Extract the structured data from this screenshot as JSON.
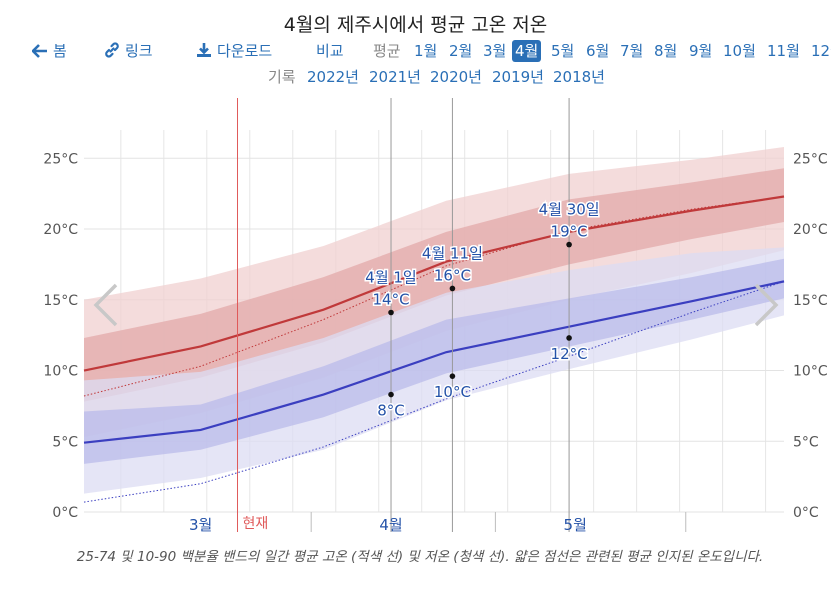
{
  "title": "4월의 제주시에서 평균 고온 저온",
  "nav": {
    "home_label": "봄",
    "link_label": "링크",
    "download_label": "다운로드",
    "compare_label": "비교",
    "average_label": "평균",
    "months": [
      "1월",
      "2월",
      "3월",
      "4월",
      "5월",
      "6월",
      "7월",
      "8월",
      "9월",
      "10월",
      "11월",
      "12월"
    ],
    "active_month": "4월"
  },
  "records": {
    "label": "기록",
    "years": [
      "2022년",
      "2021년",
      "2020년",
      "2019년",
      "2018년"
    ]
  },
  "caption": "25-74 및 10-90 백분율 밴드의 일간 평균 고온 (적색 선) 및 저온 (청색 선). 얇은 점선은 관련된 평균 인지된 온도입니다.",
  "colors": {
    "high_line": "#c0393a",
    "low_line": "#3b3fc0",
    "high_band_outer": "#f0d0d0",
    "high_band_inner": "#e3a9a9",
    "low_band_outer": "#dcdcf3",
    "low_band_inner": "#b9bbe9",
    "now_line": "#e05a5a",
    "link": "#2a6fb6"
  },
  "chart_data": {
    "type": "line",
    "x_unit": "day-of-year",
    "xlim": [
      41,
      155
    ],
    "ylim": [
      0,
      27
    ],
    "yticks": [
      0,
      5,
      10,
      15,
      20,
      25
    ],
    "ytick_labels": [
      "0°C",
      "5°C",
      "10°C",
      "15°C",
      "20°C",
      "25°C"
    ],
    "month_labels": [
      {
        "label": "3월",
        "x": 60
      },
      {
        "label": "4월",
        "x": 91
      },
      {
        "label": "5월",
        "x": 121
      }
    ],
    "month_boundaries": [
      78,
      108,
      139
    ],
    "now_marker": {
      "label": "현재",
      "x": 66
    },
    "series": [
      {
        "name": "평균 고온",
        "x": [
          41,
          60,
          80,
          100,
          120,
          140,
          155
        ],
        "values": [
          10.0,
          11.7,
          14.3,
          17.7,
          19.8,
          21.3,
          22.3
        ],
        "p10": [
          5.3,
          7.0,
          9.5,
          12.8,
          15.0,
          16.9,
          18.5
        ],
        "p25": [
          7.8,
          9.5,
          12.0,
          15.3,
          17.5,
          19.3,
          20.5
        ],
        "p75": [
          12.3,
          14.0,
          16.6,
          19.8,
          22.1,
          23.3,
          24.3
        ],
        "p90": [
          15.0,
          16.5,
          18.8,
          22.0,
          23.9,
          24.9,
          25.8
        ]
      },
      {
        "name": "평균 저온",
        "x": [
          41,
          60,
          80,
          100,
          120,
          140,
          155
        ],
        "values": [
          4.9,
          5.8,
          8.3,
          11.3,
          13.1,
          14.9,
          16.3
        ],
        "p10": [
          1.3,
          2.4,
          4.4,
          7.9,
          10.1,
          12.2,
          13.9
        ],
        "p25": [
          3.4,
          4.4,
          6.7,
          9.8,
          11.7,
          13.6,
          15.1
        ],
        "p75": [
          7.1,
          7.6,
          10.3,
          13.6,
          15.1,
          16.6,
          17.9
        ],
        "p90": [
          9.3,
          9.9,
          12.3,
          15.5,
          17.1,
          18.3,
          18.7
        ]
      },
      {
        "name": "고온 인지 온도",
        "x": [
          41,
          60,
          80,
          100,
          120,
          140,
          155
        ],
        "values": [
          8.2,
          10.3,
          13.6,
          17.4,
          19.9,
          21.4,
          22.3
        ]
      },
      {
        "name": "저온 인지 온도",
        "x": [
          41,
          60,
          80,
          100,
          120,
          140,
          155
        ],
        "values": [
          0.7,
          2.0,
          4.6,
          8.0,
          11.0,
          14.1,
          16.3
        ]
      }
    ],
    "annotations": [
      {
        "date": "4월 1일",
        "x": 91,
        "high": "14°C",
        "high_value": 14.1,
        "low": "8°C",
        "low_value": 8.3
      },
      {
        "date": "4월 11일",
        "x": 101,
        "high": "16°C",
        "high_value": 15.8,
        "low": "10°C",
        "low_value": 9.6
      },
      {
        "date": "4월 30일",
        "x": 120,
        "high": "19°C",
        "high_value": 18.9,
        "low": "12°C",
        "low_value": 12.3
      }
    ]
  }
}
